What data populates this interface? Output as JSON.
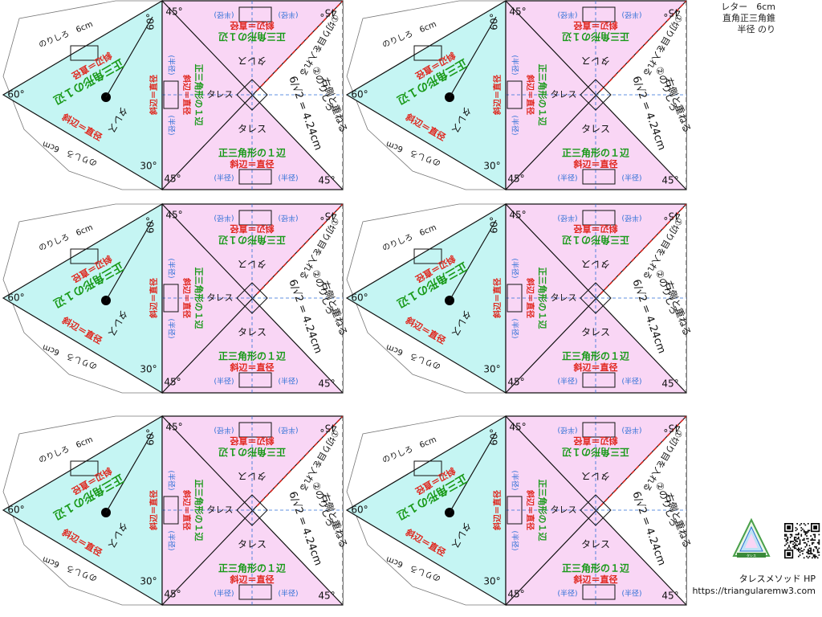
{
  "header": {
    "line1": "レター　6cm",
    "line2": "直角正三角錐",
    "line3": "半径 のり"
  },
  "footer": {
    "site_name": "タレスメソッド HP",
    "site_url": "https://triangularemw3.com"
  },
  "logo": {
    "icon": "triangle-logo-icon",
    "caption": "タレス"
  },
  "qr": {
    "icon": "qr-code-icon"
  },
  "net": {
    "glue_label": "のりしろ　6cm",
    "side_label": "斜辺＝直径",
    "eq_side_label": "正三角形の１辺",
    "radius_label": "(半径)",
    "thales": "タレス",
    "angle_60": "60°",
    "angle_45": "45°",
    "angle_30": "30°",
    "cut_label": "①切り目を入れる",
    "fold_label": "②のりしろ",
    "fold_label2": "右側と重ねる",
    "length_label": "6/√2 = 4.24cm"
  },
  "colors": {
    "cyan_face": "#c5f5f3",
    "pink_face": "#f9d6f5",
    "green_text": "#1a9a1a",
    "red_text": "#e0241b",
    "blue_text": "#2c6fd6",
    "dash_red": "#d8261c",
    "line": "#111111"
  }
}
